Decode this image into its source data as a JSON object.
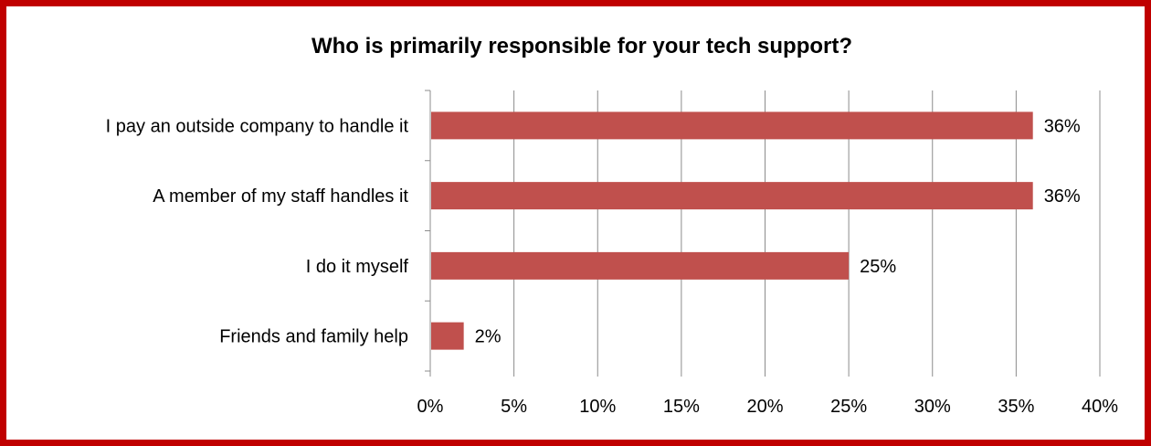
{
  "chart_data": {
    "type": "bar",
    "orientation": "horizontal",
    "title": "Who is primarily responsible for your tech support?",
    "categories": [
      "I pay an outside company to handle it",
      "A member of my staff handles it",
      "I do it myself",
      "Friends and family help"
    ],
    "values": [
      36,
      36,
      25,
      2
    ],
    "data_labels": [
      "36%",
      "36%",
      "25%",
      "2%"
    ],
    "xlim": [
      0,
      40
    ],
    "x_ticks": [
      "0%",
      "5%",
      "10%",
      "15%",
      "20%",
      "25%",
      "30%",
      "35%",
      "40%"
    ],
    "grid": "vertical",
    "legend": "none",
    "bar_color": "#c0504d",
    "border_color": "#c00000"
  }
}
